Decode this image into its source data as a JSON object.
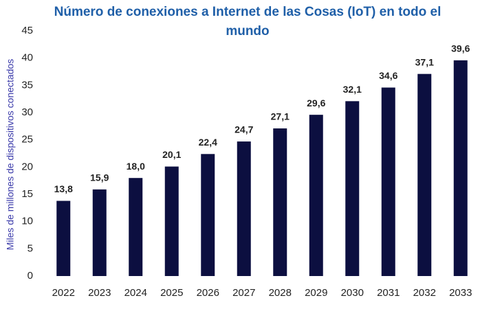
{
  "chart_data": {
    "type": "bar",
    "title": "Número de conexiones a Internet de las Cosas (IoT) en todo el mundo",
    "y_label": "Miles de millones de dispositivos conectados",
    "categories": [
      "2022",
      "2023",
      "2024",
      "2025",
      "2026",
      "2027",
      "2028",
      "2029",
      "2030",
      "2031",
      "2032",
      "2033"
    ],
    "values": [
      13.8,
      15.9,
      18.0,
      20.1,
      22.4,
      24.7,
      27.1,
      29.6,
      32.1,
      34.6,
      37.1,
      39.6
    ],
    "value_labels": [
      "13,8",
      "15,9",
      "18,0",
      "20,1",
      "22,4",
      "24,7",
      "27,1",
      "29,6",
      "32,1",
      "34,6",
      "37,1",
      "39,6"
    ],
    "color": "#0c0f40",
    "ylim": [
      0,
      45
    ],
    "yticks": [
      0,
      5,
      10,
      15,
      20,
      25,
      30,
      35,
      40,
      45
    ],
    "grid": false
  }
}
